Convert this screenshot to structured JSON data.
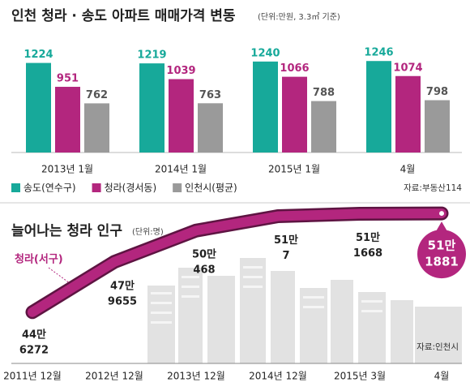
{
  "chart_data": [
    {
      "type": "bar",
      "title": "인천 청라 · 송도 아파트 매매가격 변동",
      "subtitle": "(단위:만원, 3.3㎡ 기준)",
      "categories": [
        "2013년 1월",
        "2014년 1월",
        "2015년 1월",
        "4월"
      ],
      "series": [
        {
          "name": "송도(연수구)",
          "color": "#17a99a",
          "values": [
            1224,
            1219,
            1240,
            1246
          ]
        },
        {
          "name": "청라(경서동)",
          "color": "#b3267e",
          "values": [
            951,
            1039,
            1066,
            1074
          ]
        },
        {
          "name": "인천시(평균)",
          "color": "#9a9a9a",
          "values": [
            762,
            763,
            788,
            798
          ]
        }
      ],
      "ylim": [
        200,
        1350
      ],
      "source": "자료:부동산114"
    },
    {
      "type": "line",
      "title": "늘어나는 청라 인구",
      "subtitle": "(단위:명)",
      "categories": [
        "2011년 12월",
        "2012년 12월",
        "2013년 12월",
        "2014년 12월",
        "2015년 3월",
        "4월"
      ],
      "series": [
        {
          "name": "청라(서구)",
          "color": "#b3267e",
          "values": [
            446272,
            479655,
            500468,
            510007,
            511668,
            511881
          ],
          "value_labels": [
            [
              "44만",
              "6272"
            ],
            [
              "47만",
              "9655"
            ],
            [
              "50만",
              "468"
            ],
            [
              "51만",
              "7"
            ],
            [
              "51만",
              "1668"
            ],
            [
              "51만",
              "1881"
            ]
          ]
        }
      ],
      "ylim": [
        430000,
        520000
      ],
      "source": "자료:인천시"
    }
  ]
}
